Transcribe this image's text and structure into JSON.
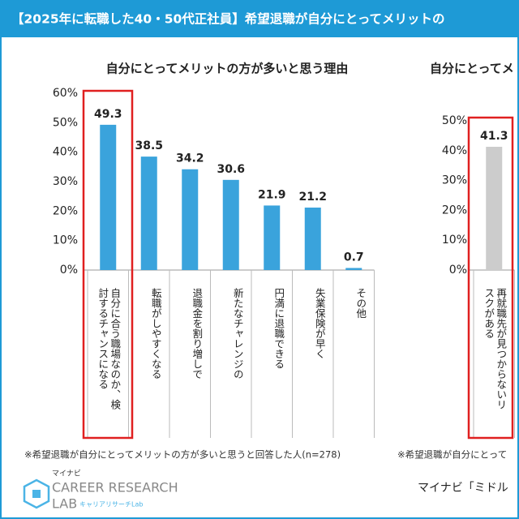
{
  "header": {
    "title": "【2025年に転職した40・50代正社員】希望退職が自分にとってメリットの"
  },
  "chart_data": [
    {
      "type": "bar",
      "title": "自分にとってメリットの方が多いと思う理由",
      "categories": [
        "自分に合う職場なのか、検討するチャンスになる",
        "転職がしやすくなる",
        "退職金を割り増しで",
        "新たなチャレンジの",
        "円満に退職できる",
        "失業保険が早く",
        "その他"
      ],
      "values": [
        49.3,
        38.5,
        34.2,
        30.6,
        21.9,
        21.2,
        0.7
      ],
      "color": "#3aa3dc",
      "ylim": [
        0,
        60
      ],
      "yticks": [
        {
          "value": 0,
          "label": "0%"
        },
        {
          "value": 10,
          "label": "10%"
        },
        {
          "value": 20,
          "label": "20%"
        },
        {
          "value": 30,
          "label": "30%"
        },
        {
          "value": 40,
          "label": "40%"
        },
        {
          "value": 50,
          "label": "50%"
        },
        {
          "value": 60,
          "label": "60%"
        }
      ],
      "note": "※希望退職が自分にとってメリットの方が多いと思うと回答した人(n=278)"
    },
    {
      "type": "bar",
      "title": "自分にとってメ",
      "categories": [
        "再就職先が見つからないリスクがある"
      ],
      "values": [
        41.3
      ],
      "color": "#cccccc",
      "ylim": [
        0,
        50
      ],
      "yticks": [
        {
          "value": 0,
          "label": "0%"
        },
        {
          "value": 10,
          "label": "10%"
        },
        {
          "value": 20,
          "label": "20%"
        },
        {
          "value": 30,
          "label": "30%"
        },
        {
          "value": 40,
          "label": "40%"
        },
        {
          "value": 50,
          "label": "50%"
        }
      ],
      "note": "※希望退職が自分にとって"
    }
  ],
  "source": "マイナビ「ミドル",
  "logo": {
    "brand": "マイナビ",
    "name": "CAREER RESEARCH",
    "lab": "LAB",
    "sub": "キャリアリサーチLab"
  }
}
